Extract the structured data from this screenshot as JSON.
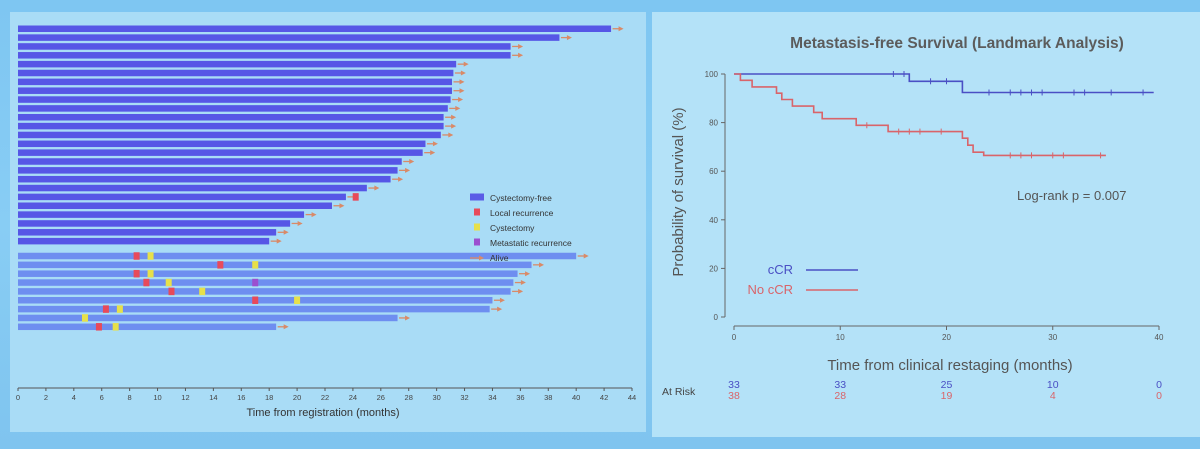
{
  "chart_data": [
    {
      "type": "swimmer",
      "xlabel": "Time from registration (months)",
      "xlim": [
        0,
        44
      ],
      "xticks": [
        0,
        2,
        4,
        6,
        8,
        10,
        12,
        14,
        16,
        18,
        20,
        22,
        24,
        26,
        28,
        30,
        32,
        34,
        36,
        38,
        40,
        42,
        44
      ],
      "legend": {
        "placement": "right",
        "items": [
          {
            "label": "Cystectomy-free",
            "kind": "bar",
            "color": "#5b5ce6"
          },
          {
            "label": "Local recurrence",
            "kind": "square",
            "color": "#e84a5a"
          },
          {
            "label": "Cystectomy",
            "kind": "square",
            "color": "#e7e04a"
          },
          {
            "label": "Metastatic recurrence",
            "kind": "square",
            "color": "#9b4fd0"
          },
          {
            "label": "Alive",
            "kind": "arrow",
            "color": "#d98a68"
          }
        ]
      },
      "groups": [
        {
          "name": "",
          "color": "#5656e6",
          "lengths": [
            42.5,
            38.8,
            35.3,
            35.3,
            31.4,
            31.2,
            31.1,
            31.1,
            31.0,
            30.8,
            30.5,
            30.5,
            30.3,
            29.2,
            29.0,
            27.5,
            27.2,
            26.7,
            25.0,
            23.5,
            22.5,
            20.5,
            19.5,
            18.5,
            18.0
          ]
        },
        {
          "name": "",
          "color": "#6e8ef0",
          "lengths": [
            40.0,
            36.8,
            35.8,
            35.5,
            35.3,
            34.0,
            33.8,
            27.2,
            18.5
          ]
        }
      ],
      "events": [
        {
          "row": 19,
          "x": 24.2,
          "type": "Local recurrence"
        },
        {
          "row": 25,
          "x": 8.5,
          "type": "Local recurrence"
        },
        {
          "row": 25,
          "x": 9.5,
          "type": "Cystectomy"
        },
        {
          "row": 26,
          "x": 14.5,
          "type": "Local recurrence"
        },
        {
          "row": 26,
          "x": 17.0,
          "type": "Cystectomy"
        },
        {
          "row": 27,
          "x": 8.5,
          "type": "Local recurrence"
        },
        {
          "row": 27,
          "x": 9.5,
          "type": "Cystectomy"
        },
        {
          "row": 28,
          "x": 9.2,
          "type": "Local recurrence"
        },
        {
          "row": 28,
          "x": 10.8,
          "type": "Cystectomy"
        },
        {
          "row": 28,
          "x": 17.0,
          "type": "Metastatic recurrence"
        },
        {
          "row": 29,
          "x": 11.0,
          "type": "Local recurrence"
        },
        {
          "row": 29,
          "x": 13.2,
          "type": "Cystectomy"
        },
        {
          "row": 30,
          "x": 17.0,
          "type": "Local recurrence"
        },
        {
          "row": 30,
          "x": 20.0,
          "type": "Cystectomy"
        },
        {
          "row": 31,
          "x": 6.3,
          "type": "Local recurrence"
        },
        {
          "row": 31,
          "x": 7.3,
          "type": "Cystectomy"
        },
        {
          "row": 32,
          "x": 4.8,
          "type": "Cystectomy"
        },
        {
          "row": 33,
          "x": 5.8,
          "type": "Local recurrence"
        },
        {
          "row": 33,
          "x": 7.0,
          "type": "Cystectomy"
        }
      ]
    },
    {
      "type": "line",
      "title": "Metastasis-free Survival (Landmark Analysis)",
      "xlabel": "Time from clinical restaging (months)",
      "ylabel": "Probability of survival (%)",
      "xlim": [
        0,
        40
      ],
      "ylim": [
        0,
        100
      ],
      "xticks": [
        0,
        10,
        20,
        30,
        40
      ],
      "yticks": [
        0,
        20,
        40,
        60,
        80,
        100
      ],
      "annotation": "Log-rank p = 0.007",
      "legend_placement": "bottom-left",
      "series": [
        {
          "name": "cCR",
          "color": "#4a4fc4",
          "steps": [
            [
              0,
              100
            ],
            [
              16.5,
              100
            ],
            [
              16.5,
              97
            ],
            [
              21.5,
              97
            ],
            [
              21.5,
              92.4
            ],
            [
              39.5,
              92.4
            ]
          ],
          "censors": [
            [
              15,
              100
            ],
            [
              16,
              100
            ],
            [
              18.5,
              97
            ],
            [
              20,
              97
            ],
            [
              24,
              92.4
            ],
            [
              26,
              92.4
            ],
            [
              27,
              92.4
            ],
            [
              28,
              92.4
            ],
            [
              29,
              92.4
            ],
            [
              32,
              92.4
            ],
            [
              33,
              92.4
            ],
            [
              35.5,
              92.4
            ],
            [
              38.5,
              92.4
            ]
          ]
        },
        {
          "name": "No cCR",
          "color": "#d9646a",
          "steps": [
            [
              0,
              100
            ],
            [
              0.6,
              100
            ],
            [
              0.6,
              97.4
            ],
            [
              1.7,
              97.4
            ],
            [
              1.7,
              94.7
            ],
            [
              4,
              94.7
            ],
            [
              4,
              92.1
            ],
            [
              4.5,
              92.1
            ],
            [
              4.5,
              89.5
            ],
            [
              5.5,
              89.5
            ],
            [
              5.5,
              86.8
            ],
            [
              7.5,
              86.8
            ],
            [
              7.5,
              84.2
            ],
            [
              8.3,
              84.2
            ],
            [
              8.3,
              81.6
            ],
            [
              11.5,
              81.6
            ],
            [
              11.5,
              78.9
            ],
            [
              14.5,
              78.9
            ],
            [
              14.5,
              76.3
            ],
            [
              21.5,
              76.3
            ],
            [
              21.5,
              73.6
            ],
            [
              22,
              73.6
            ],
            [
              22,
              70.7
            ],
            [
              22.5,
              70.7
            ],
            [
              22.5,
              67.8
            ],
            [
              23.5,
              67.8
            ],
            [
              23.5,
              66.5
            ],
            [
              35,
              66.5
            ]
          ],
          "censors": [
            [
              12.5,
              78.9
            ],
            [
              15.5,
              76.3
            ],
            [
              16.5,
              76.3
            ],
            [
              17.5,
              76.3
            ],
            [
              19.5,
              76.3
            ],
            [
              26,
              66.5
            ],
            [
              27,
              66.5
            ],
            [
              28,
              66.5
            ],
            [
              30,
              66.5
            ],
            [
              31,
              66.5
            ],
            [
              34.5,
              66.5
            ]
          ]
        }
      ],
      "at_risk": {
        "label": "At Risk",
        "times": [
          0,
          10,
          20,
          30,
          40
        ],
        "rows": [
          {
            "name": "cCR",
            "color": "#4a4fc4",
            "values": [
              "33",
              "33",
              "25",
              "10",
              "0"
            ]
          },
          {
            "name": "No cCR",
            "color": "#d9646a",
            "values": [
              "38",
              "28",
              "19",
              "4",
              "0"
            ]
          }
        ]
      }
    }
  ]
}
